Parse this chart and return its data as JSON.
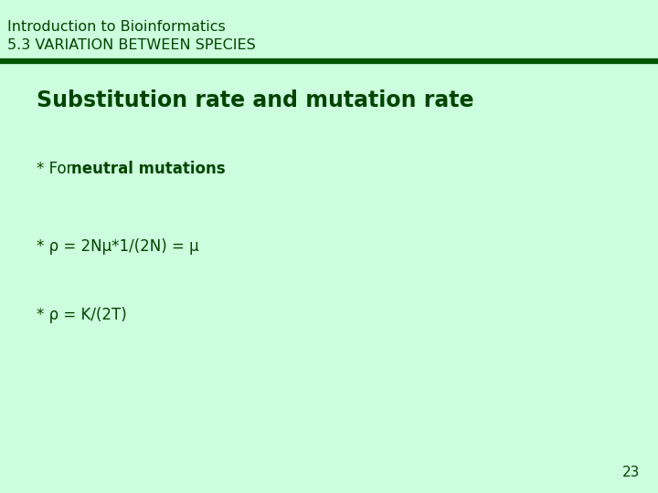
{
  "background_color": "#ccffdd",
  "divider_color": "#005500",
  "text_color": "#004400",
  "header_line1": "Introduction to Bioinformatics",
  "header_line2": "5.3 VARIATION BETWEEN SPECIES",
  "title": "Substitution rate and mutation rate",
  "bullet1_normal": "* For ",
  "bullet1_bold": "neutral mutations",
  "bullet2": "* ρ = 2Nμ*1/(2N) = μ",
  "bullet3": "* ρ = K/(2T)",
  "page_number": "23",
  "header_fontsize": 11.5,
  "title_fontsize": 17,
  "bullet_fontsize": 12,
  "page_num_fontsize": 11
}
